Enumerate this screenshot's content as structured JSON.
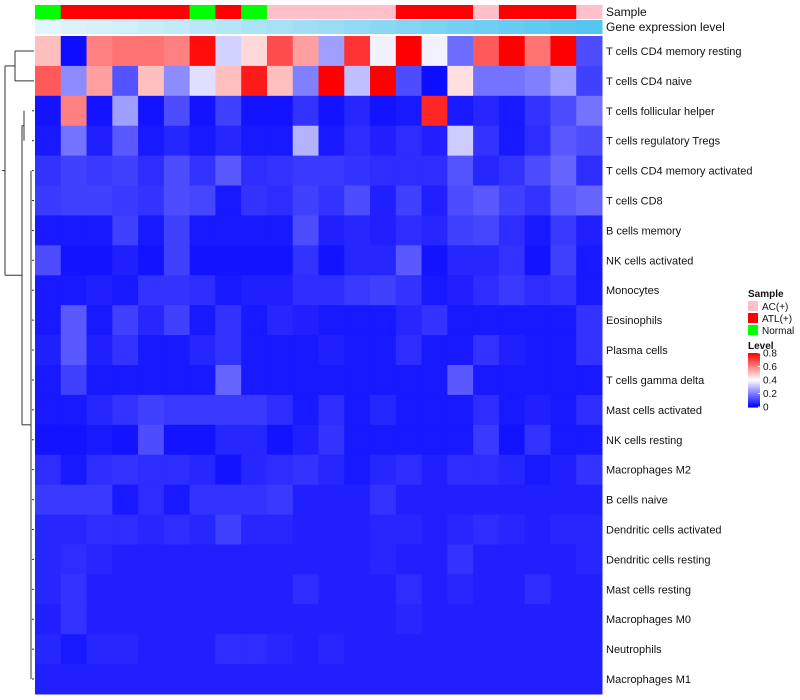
{
  "chart_data": {
    "type": "heatmap",
    "annotation_labels": [
      "Sample",
      "Gene expression level"
    ],
    "column_samples": [
      "Normal",
      "ATL(+)",
      "ATL(+)",
      "ATL(+)",
      "ATL(+)",
      "ATL(+)",
      "Normal",
      "ATL(+)",
      "Normal",
      "AC(+)",
      "AC(+)",
      "AC(+)",
      "AC(+)",
      "AC(+)",
      "ATL(+)",
      "ATL(+)",
      "ATL(+)",
      "AC(+)",
      "ATL(+)",
      "ATL(+)",
      "ATL(+)",
      "AC(+)"
    ],
    "column_expression": [
      0.02,
      0.06,
      0.1,
      0.14,
      0.19,
      0.23,
      0.28,
      0.32,
      0.37,
      0.41,
      0.46,
      0.5,
      0.55,
      0.59,
      0.64,
      0.68,
      0.73,
      0.77,
      0.82,
      0.86,
      0.91,
      0.95
    ],
    "rows": [
      "T cells CD4 memory resting",
      "T cells CD4 naive",
      "T cells follicular helper",
      "T cells regulatory  Tregs",
      "T cells CD4 memory activated",
      "T cells CD8",
      "B cells memory",
      "NK cells activated",
      "Monocytes",
      "Eosinophils",
      "Plasma cells",
      "T cells gamma delta",
      "Mast cells activated",
      "NK cells resting",
      "Macrophages M2",
      "B cells naive",
      "Dendritic cells activated",
      "Dendritic cells resting",
      "Mast cells resting",
      "Macrophages M0",
      "Neutrophils",
      "Macrophages M1"
    ],
    "values": [
      [
        0.5,
        0.02,
        0.6,
        0.62,
        0.62,
        0.6,
        0.78,
        0.33,
        0.46,
        0.68,
        0.55,
        0.25,
        0.72,
        0.38,
        0.8,
        0.38,
        0.17,
        0.66,
        0.8,
        0.62,
        0.8,
        0.12
      ],
      [
        0.66,
        0.22,
        0.55,
        0.13,
        0.5,
        0.22,
        0.35,
        0.5,
        0.76,
        0.5,
        0.2,
        0.8,
        0.3,
        0.8,
        0.12,
        0.02,
        0.45,
        0.18,
        0.18,
        0.2,
        0.25,
        0.1
      ],
      [
        0.03,
        0.6,
        0.03,
        0.25,
        0.03,
        0.12,
        0.03,
        0.1,
        0.03,
        0.03,
        0.08,
        0.03,
        0.06,
        0.03,
        0.04,
        0.74,
        0.04,
        0.06,
        0.04,
        0.08,
        0.12,
        0.18
      ],
      [
        0.04,
        0.18,
        0.05,
        0.14,
        0.04,
        0.06,
        0.04,
        0.06,
        0.04,
        0.04,
        0.28,
        0.04,
        0.07,
        0.05,
        0.07,
        0.05,
        0.32,
        0.08,
        0.04,
        0.07,
        0.14,
        0.12
      ],
      [
        0.08,
        0.1,
        0.09,
        0.1,
        0.07,
        0.12,
        0.08,
        0.14,
        0.07,
        0.08,
        0.09,
        0.09,
        0.08,
        0.07,
        0.07,
        0.07,
        0.13,
        0.06,
        0.08,
        0.12,
        0.16,
        0.07
      ],
      [
        0.09,
        0.1,
        0.1,
        0.09,
        0.08,
        0.12,
        0.11,
        0.04,
        0.08,
        0.07,
        0.1,
        0.08,
        0.12,
        0.05,
        0.1,
        0.05,
        0.12,
        0.14,
        0.1,
        0.08,
        0.14,
        0.16
      ],
      [
        0.04,
        0.04,
        0.04,
        0.1,
        0.04,
        0.1,
        0.04,
        0.04,
        0.04,
        0.04,
        0.12,
        0.05,
        0.06,
        0.05,
        0.07,
        0.06,
        0.1,
        0.11,
        0.07,
        0.04,
        0.09,
        0.05
      ],
      [
        0.12,
        0.03,
        0.03,
        0.05,
        0.03,
        0.1,
        0.03,
        0.03,
        0.03,
        0.03,
        0.08,
        0.03,
        0.06,
        0.06,
        0.14,
        0.03,
        0.06,
        0.06,
        0.08,
        0.03,
        0.1,
        0.04
      ],
      [
        0.04,
        0.04,
        0.05,
        0.04,
        0.08,
        0.08,
        0.07,
        0.04,
        0.05,
        0.05,
        0.07,
        0.07,
        0.09,
        0.1,
        0.08,
        0.04,
        0.05,
        0.07,
        0.09,
        0.07,
        0.08,
        0.04
      ],
      [
        0.04,
        0.14,
        0.04,
        0.1,
        0.06,
        0.1,
        0.04,
        0.08,
        0.04,
        0.06,
        0.05,
        0.04,
        0.04,
        0.04,
        0.06,
        0.08,
        0.04,
        0.04,
        0.04,
        0.04,
        0.04,
        0.08
      ],
      [
        0.05,
        0.14,
        0.05,
        0.08,
        0.04,
        0.04,
        0.06,
        0.08,
        0.04,
        0.04,
        0.04,
        0.05,
        0.04,
        0.04,
        0.07,
        0.04,
        0.04,
        0.08,
        0.05,
        0.04,
        0.04,
        0.08
      ],
      [
        0.04,
        0.1,
        0.04,
        0.04,
        0.04,
        0.04,
        0.04,
        0.16,
        0.04,
        0.04,
        0.04,
        0.04,
        0.04,
        0.04,
        0.04,
        0.04,
        0.14,
        0.04,
        0.04,
        0.04,
        0.04,
        0.04
      ],
      [
        0.04,
        0.04,
        0.06,
        0.08,
        0.1,
        0.09,
        0.09,
        0.09,
        0.09,
        0.07,
        0.04,
        0.07,
        0.04,
        0.06,
        0.04,
        0.04,
        0.04,
        0.07,
        0.04,
        0.05,
        0.04,
        0.07
      ],
      [
        0.03,
        0.03,
        0.04,
        0.03,
        0.12,
        0.03,
        0.03,
        0.06,
        0.06,
        0.03,
        0.05,
        0.08,
        0.04,
        0.04,
        0.04,
        0.04,
        0.04,
        0.09,
        0.03,
        0.08,
        0.04,
        0.04
      ],
      [
        0.07,
        0.04,
        0.07,
        0.08,
        0.07,
        0.07,
        0.06,
        0.03,
        0.06,
        0.07,
        0.08,
        0.06,
        0.04,
        0.06,
        0.07,
        0.05,
        0.07,
        0.07,
        0.06,
        0.04,
        0.05,
        0.08
      ],
      [
        0.09,
        0.09,
        0.09,
        0.04,
        0.07,
        0.04,
        0.08,
        0.08,
        0.08,
        0.09,
        0.05,
        0.05,
        0.05,
        0.08,
        0.05,
        0.05,
        0.05,
        0.05,
        0.05,
        0.05,
        0.05,
        0.05
      ],
      [
        0.06,
        0.06,
        0.07,
        0.07,
        0.06,
        0.07,
        0.06,
        0.1,
        0.06,
        0.06,
        0.05,
        0.05,
        0.05,
        0.06,
        0.06,
        0.05,
        0.06,
        0.07,
        0.06,
        0.05,
        0.06,
        0.06
      ],
      [
        0.06,
        0.07,
        0.06,
        0.05,
        0.05,
        0.05,
        0.05,
        0.05,
        0.05,
        0.05,
        0.05,
        0.05,
        0.05,
        0.06,
        0.05,
        0.05,
        0.08,
        0.05,
        0.05,
        0.05,
        0.05,
        0.06
      ],
      [
        0.06,
        0.08,
        0.05,
        0.05,
        0.05,
        0.05,
        0.05,
        0.05,
        0.05,
        0.05,
        0.07,
        0.05,
        0.05,
        0.05,
        0.07,
        0.05,
        0.06,
        0.05,
        0.05,
        0.07,
        0.05,
        0.05
      ],
      [
        0.05,
        0.08,
        0.05,
        0.05,
        0.05,
        0.05,
        0.05,
        0.05,
        0.05,
        0.05,
        0.05,
        0.05,
        0.05,
        0.05,
        0.06,
        0.05,
        0.05,
        0.05,
        0.05,
        0.05,
        0.05,
        0.05
      ],
      [
        0.06,
        0.04,
        0.06,
        0.06,
        0.05,
        0.05,
        0.05,
        0.07,
        0.07,
        0.06,
        0.05,
        0.06,
        0.05,
        0.05,
        0.05,
        0.05,
        0.05,
        0.05,
        0.05,
        0.05,
        0.05,
        0.05
      ],
      [
        0.05,
        0.05,
        0.05,
        0.05,
        0.05,
        0.05,
        0.05,
        0.05,
        0.05,
        0.05,
        0.05,
        0.05,
        0.05,
        0.05,
        0.05,
        0.05,
        0.05,
        0.05,
        0.05,
        0.05,
        0.05,
        0.05
      ]
    ],
    "sample_colors": {
      "AC(+)": "#FFC0CB",
      "ATL(+)": "#FF0000",
      "Normal": "#00FF00"
    },
    "color_scale": {
      "low": "#0000FF",
      "mid": "#FFFFFF",
      "high": "#FF0000",
      "min": 0,
      "mid_value": 0.4,
      "max": 0.8
    },
    "expression_colors": {
      "low": "#E6F6FC",
      "high": "#4CC2EE"
    },
    "legend": {
      "sample_title": "Sample",
      "sample_entries": [
        "AC(+)",
        "ATL(+)",
        "Normal"
      ],
      "level_title": "Level",
      "level_ticks": [
        0.8,
        0.6,
        0.4,
        0.2,
        0
      ],
      "level_tick_labels": [
        "0.8",
        "0.6",
        "0.4",
        "0.2",
        "0"
      ],
      "placement": "right"
    },
    "row_dendrogram": true
  }
}
